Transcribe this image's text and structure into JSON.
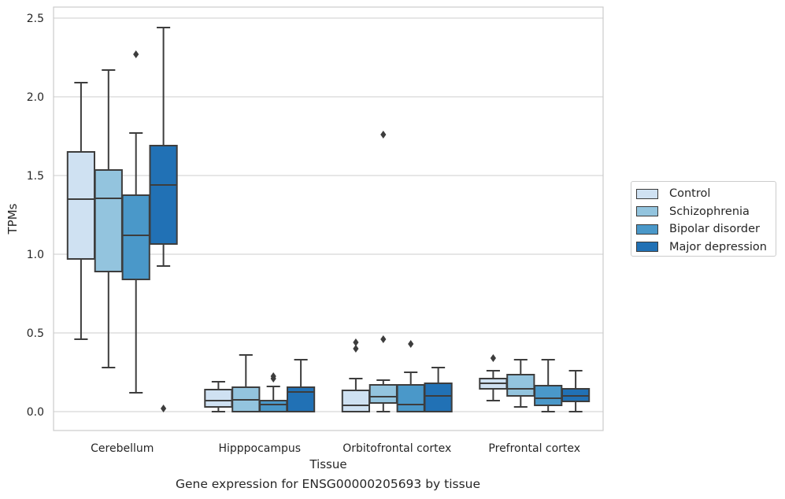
{
  "chart_data": {
    "type": "boxplot",
    "caption": "Gene expression for ENSG00000205693 by tissue",
    "xlabel": "Tissue",
    "ylabel": "TPMs",
    "ylim": [
      -0.12,
      2.57
    ],
    "yticks": [
      "0.0",
      "0.5",
      "1.0",
      "1.5",
      "2.0",
      "2.5"
    ],
    "ytick_values": [
      0.0,
      0.5,
      1.0,
      1.5,
      2.0,
      2.5
    ],
    "grid": "horizontal",
    "legend_position": "right",
    "categories": [
      "Cerebellum",
      "Hipppocampus",
      "Orbitofrontal cortex",
      "Prefrontal cortex"
    ],
    "series": [
      {
        "name": "Control",
        "color": "#cfe1f2",
        "boxes": [
          {
            "whisker_low": 0.46,
            "q1": 0.97,
            "median": 1.35,
            "q3": 1.65,
            "whisker_high": 2.09,
            "outliers": []
          },
          {
            "whisker_low": 0.0,
            "q1": 0.03,
            "median": 0.07,
            "q3": 0.14,
            "whisker_high": 0.19,
            "outliers": []
          },
          {
            "whisker_low": 0.0,
            "q1": 0.0,
            "median": 0.04,
            "q3": 0.135,
            "whisker_high": 0.21,
            "outliers": [
              0.4,
              0.44
            ]
          },
          {
            "whisker_low": 0.07,
            "q1": 0.145,
            "median": 0.18,
            "q3": 0.21,
            "whisker_high": 0.26,
            "outliers": [
              0.34
            ]
          }
        ]
      },
      {
        "name": "Schizophrenia",
        "color": "#93c4de",
        "boxes": [
          {
            "whisker_low": 0.28,
            "q1": 0.89,
            "median": 1.355,
            "q3": 1.535,
            "whisker_high": 2.17,
            "outliers": []
          },
          {
            "whisker_low": 0.0,
            "q1": 0.0,
            "median": 0.075,
            "q3": 0.155,
            "whisker_high": 0.36,
            "outliers": []
          },
          {
            "whisker_low": 0.0,
            "q1": 0.055,
            "median": 0.095,
            "q3": 0.17,
            "whisker_high": 0.2,
            "outliers": [
              0.46,
              1.76
            ]
          },
          {
            "whisker_low": 0.03,
            "q1": 0.1,
            "median": 0.145,
            "q3": 0.235,
            "whisker_high": 0.33,
            "outliers": []
          }
        ]
      },
      {
        "name": "Bipolar disorder",
        "color": "#4a98c9",
        "boxes": [
          {
            "whisker_low": 0.12,
            "q1": 0.84,
            "median": 1.12,
            "q3": 1.375,
            "whisker_high": 1.77,
            "outliers": [
              2.27
            ]
          },
          {
            "whisker_low": 0.0,
            "q1": 0.0,
            "median": 0.045,
            "q3": 0.07,
            "whisker_high": 0.16,
            "outliers": [
              0.21,
              0.225
            ]
          },
          {
            "whisker_low": 0.0,
            "q1": 0.0,
            "median": 0.045,
            "q3": 0.17,
            "whisker_high": 0.25,
            "outliers": [
              0.43
            ]
          },
          {
            "whisker_low": 0.0,
            "q1": 0.04,
            "median": 0.085,
            "q3": 0.165,
            "whisker_high": 0.33,
            "outliers": []
          }
        ]
      },
      {
        "name": "Major depression",
        "color": "#2171b5",
        "boxes": [
          {
            "whisker_low": 0.925,
            "q1": 1.065,
            "median": 1.44,
            "q3": 1.69,
            "whisker_high": 2.44,
            "outliers": [
              0.02
            ]
          },
          {
            "whisker_low": 0.0,
            "q1": 0.0,
            "median": 0.125,
            "q3": 0.155,
            "whisker_high": 0.33,
            "outliers": []
          },
          {
            "whisker_low": 0.0,
            "q1": 0.0,
            "median": 0.1,
            "q3": 0.18,
            "whisker_high": 0.28,
            "outliers": []
          },
          {
            "whisker_low": 0.0,
            "q1": 0.065,
            "median": 0.1,
            "q3": 0.145,
            "whisker_high": 0.26,
            "outliers": []
          }
        ]
      }
    ]
  }
}
